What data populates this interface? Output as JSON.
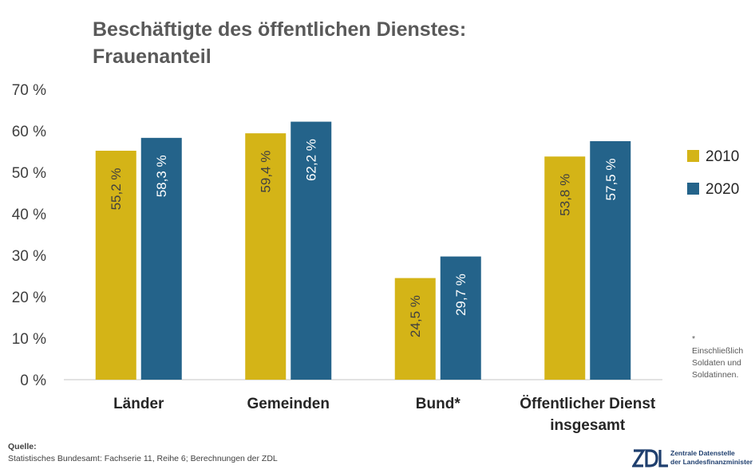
{
  "chart_data": {
    "type": "bar",
    "title_line1": "Beschäftigte des öffentlichen Dienstes:",
    "title_line2": "Frauenanteil",
    "categories": [
      "Länder",
      "Gemeinden",
      "Bund*",
      "Öffentlicher Dienst insgesamt"
    ],
    "category_lines": [
      [
        "Länder"
      ],
      [
        "Gemeinden"
      ],
      [
        "Bund*"
      ],
      [
        "Öffentlicher Dienst",
        "insgesamt"
      ]
    ],
    "series": [
      {
        "name": "2010",
        "values": [
          55.2,
          59.4,
          24.5,
          53.8
        ],
        "labels": [
          "55,2 %",
          "59,4 %",
          "24,5 %",
          "53,8 %"
        ],
        "color": "#d4b417",
        "label_color": "#404040"
      },
      {
        "name": "2020",
        "values": [
          58.3,
          62.2,
          29.7,
          57.5
        ],
        "labels": [
          "58,3 %",
          "62,2 %",
          "29,7 %",
          "57,5 %"
        ],
        "color": "#24638a",
        "label_color": "#ffffff"
      }
    ],
    "ylim": [
      0,
      70
    ],
    "yticks": [
      0,
      10,
      20,
      30,
      40,
      50,
      60,
      70
    ],
    "ytick_labels": [
      "0 %",
      "10 %",
      "20 %",
      "30 %",
      "40 %",
      "50 %",
      "60 %",
      "70 %"
    ],
    "grid": false,
    "legend_position": "right"
  },
  "footnote": {
    "marker": "*",
    "lines": [
      "Einschließlich",
      "Soldaten und",
      "Soldatinnen."
    ]
  },
  "source": {
    "heading": "Quelle:",
    "text": "Statistisches Bundesamt: Fachserie 11, Reihe 6; Berechnungen der ZDL"
  },
  "logo": {
    "line1": "Zentrale Datenstelle",
    "line2": "der Landesfinanzminister",
    "brand_color": "#1f3f6e"
  }
}
